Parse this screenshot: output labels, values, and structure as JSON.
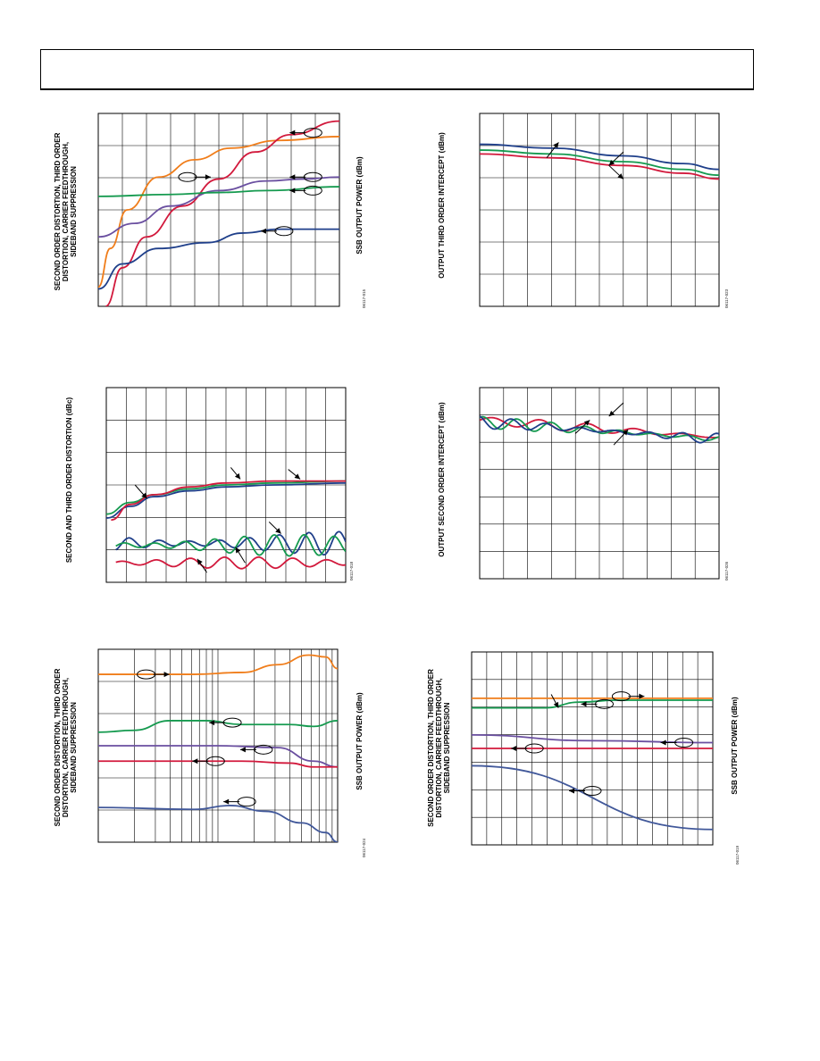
{
  "page": {
    "header": ""
  },
  "chart_data": [
    {
      "id": "c1",
      "type": "line",
      "ylabel": "SECOND ORDER DISTORTION, THIRD ORDER\nDISTORTION, CARRIER FEEDTHROUGH,\nSIDEBAND SUPPRESSION",
      "xlabel": "SSB OUTPUT POWER (dBm)",
      "code": "06117-015",
      "grid": {
        "vlines": 10,
        "hlines": 6
      },
      "xlim": [
        0,
        1
      ],
      "ylim": [
        0,
        1
      ],
      "colors": {
        "orange": "#f07d1a",
        "red": "#d2193c",
        "purple": "#6a4fa0",
        "green": "#159a4f",
        "blue": "#1f3f8a"
      },
      "series": [
        {
          "color": "orange",
          "points": [
            [
              0,
              0.1
            ],
            [
              0.05,
              0.3
            ],
            [
              0.12,
              0.5
            ],
            [
              0.25,
              0.67
            ],
            [
              0.4,
              0.76
            ],
            [
              0.55,
              0.82
            ],
            [
              0.75,
              0.86
            ],
            [
              1,
              0.88
            ]
          ]
        },
        {
          "color": "red",
          "points": [
            [
              0.03,
              0
            ],
            [
              0.1,
              0.2
            ],
            [
              0.2,
              0.36
            ],
            [
              0.35,
              0.52
            ],
            [
              0.5,
              0.66
            ],
            [
              0.65,
              0.8
            ],
            [
              0.8,
              0.89
            ],
            [
              1,
              0.96
            ]
          ]
        },
        {
          "color": "purple",
          "points": [
            [
              0,
              0.36
            ],
            [
              0.15,
              0.43
            ],
            [
              0.3,
              0.52
            ],
            [
              0.5,
              0.6
            ],
            [
              0.7,
              0.65
            ],
            [
              0.85,
              0.66
            ],
            [
              1,
              0.67
            ]
          ]
        },
        {
          "color": "green",
          "points": [
            [
              0,
              0.57
            ],
            [
              0.3,
              0.58
            ],
            [
              0.5,
              0.59
            ],
            [
              0.7,
              0.6
            ],
            [
              1,
              0.62
            ]
          ]
        },
        {
          "color": "blue",
          "points": [
            [
              0,
              0.09
            ],
            [
              0.1,
              0.22
            ],
            [
              0.25,
              0.3
            ],
            [
              0.45,
              0.33
            ],
            [
              0.6,
              0.38
            ],
            [
              0.75,
              0.4
            ],
            [
              1,
              0.4
            ]
          ]
        }
      ],
      "markers": [
        {
          "x": 0.89,
          "y": 0.9,
          "dir": "left",
          "color": "red"
        },
        {
          "x": 0.37,
          "y": 0.67,
          "dir": "right",
          "color": "orange"
        },
        {
          "x": 0.89,
          "y": 0.67,
          "dir": "left",
          "color": "purple"
        },
        {
          "x": 0.89,
          "y": 0.6,
          "dir": "left",
          "color": "green"
        },
        {
          "x": 0.77,
          "y": 0.39,
          "dir": "left",
          "color": "blue"
        }
      ]
    },
    {
      "id": "c2",
      "type": "line",
      "ylabel": "OUTPUT THIRD ORDER INTERCEPT (dBm)",
      "xlabel": "",
      "code": "06117-023",
      "grid": {
        "vlines": 10,
        "hlines": 6
      },
      "xlim": [
        0,
        1
      ],
      "ylim": [
        0,
        1
      ],
      "colors": {
        "red": "#d2193c",
        "green": "#159a4f",
        "blue": "#1f3f8a"
      },
      "series": [
        {
          "color": "blue",
          "points": [
            [
              0,
              0.84
            ],
            [
              0.3,
              0.82
            ],
            [
              0.6,
              0.78
            ],
            [
              0.85,
              0.74
            ],
            [
              1,
              0.71
            ]
          ]
        },
        {
          "color": "green",
          "points": [
            [
              0,
              0.81
            ],
            [
              0.3,
              0.79
            ],
            [
              0.6,
              0.75
            ],
            [
              0.85,
              0.71
            ],
            [
              1,
              0.68
            ]
          ]
        },
        {
          "color": "red",
          "points": [
            [
              0,
              0.79
            ],
            [
              0.3,
              0.77
            ],
            [
              0.6,
              0.73
            ],
            [
              0.85,
              0.69
            ],
            [
              1,
              0.66
            ]
          ]
        }
      ],
      "arrows": [
        {
          "x1": 0.6,
          "y1": 0.8,
          "x2": 0.54,
          "y2": 0.73
        },
        {
          "x1": 0.28,
          "y1": 0.77,
          "x2": 0.33,
          "y2": 0.85
        },
        {
          "x1": 0.54,
          "y1": 0.73,
          "x2": 0.6,
          "y2": 0.66
        }
      ]
    },
    {
      "id": "c3",
      "type": "line",
      "ylabel": "SECOND AND THIRD ORDER DISTORTION (dBc)",
      "xlabel": "",
      "code": "06117-018",
      "grid": {
        "vlines": 12,
        "hlines": 6
      },
      "xlim": [
        0,
        1
      ],
      "ylim": [
        0,
        1
      ],
      "colors": {
        "red": "#d2193c",
        "green": "#159a4f",
        "blue": "#1f3f8a"
      },
      "series": [
        {
          "color": "green",
          "points": [
            [
              0,
              0.35
            ],
            [
              0.1,
              0.41
            ],
            [
              0.2,
              0.45
            ],
            [
              0.35,
              0.48
            ],
            [
              0.5,
              0.5
            ],
            [
              0.7,
              0.51
            ],
            [
              1,
              0.52
            ]
          ]
        },
        {
          "color": "blue",
          "points": [
            [
              0,
              0.33
            ],
            [
              0.1,
              0.39
            ],
            [
              0.2,
              0.44
            ],
            [
              0.35,
              0.47
            ],
            [
              0.5,
              0.49
            ],
            [
              0.7,
              0.5
            ],
            [
              1,
              0.51
            ]
          ]
        },
        {
          "color": "red",
          "points": [
            [
              0.02,
              0.32
            ],
            [
              0.1,
              0.4
            ],
            [
              0.2,
              0.45
            ],
            [
              0.35,
              0.49
            ],
            [
              0.5,
              0.51
            ],
            [
              0.7,
              0.52
            ],
            [
              1,
              0.52
            ]
          ]
        },
        {
          "color": "blue",
          "wavy": true,
          "base": 0.2,
          "amp": 0.06,
          "freq": 16,
          "start": 0.04
        },
        {
          "color": "green",
          "wavy": true,
          "base": 0.19,
          "amp": 0.055,
          "freq": 16,
          "start": 0.04
        },
        {
          "color": "red",
          "wavy": true,
          "base": 0.1,
          "amp": 0.03,
          "freq": 14,
          "start": 0.04
        }
      ],
      "arrows": [
        {
          "x1": 0.12,
          "y1": 0.5,
          "x2": 0.17,
          "y2": 0.43
        },
        {
          "x1": 0.52,
          "y1": 0.59,
          "x2": 0.56,
          "y2": 0.53
        },
        {
          "x1": 0.76,
          "y1": 0.58,
          "x2": 0.81,
          "y2": 0.53
        },
        {
          "x1": 0.68,
          "y1": 0.31,
          "x2": 0.73,
          "y2": 0.25
        },
        {
          "x1": 0.58,
          "y1": 0.1,
          "x2": 0.54,
          "y2": 0.18
        },
        {
          "x1": 0.42,
          "y1": 0.05,
          "x2": 0.38,
          "y2": 0.12
        }
      ]
    },
    {
      "id": "c4",
      "type": "line",
      "ylabel": "OUTPUT SECOND ORDER INTERCEPT (dBm)",
      "xlabel": "",
      "code": "06117-026",
      "grid": {
        "vlines": 10,
        "hlines": 7
      },
      "xlim": [
        0,
        1
      ],
      "ylim": [
        0,
        1
      ],
      "colors": {
        "red": "#d2193c",
        "green": "#159a4f",
        "blue": "#1f3f8a"
      },
      "series": [
        {
          "color": "red",
          "wavy": true,
          "base": 0.83,
          "amp": 0.025,
          "freq": 10,
          "start": 0,
          "slope": -0.09
        },
        {
          "color": "green",
          "wavy": true,
          "base": 0.82,
          "amp": 0.03,
          "freq": 14,
          "start": 0,
          "slope": -0.09
        },
        {
          "color": "blue",
          "wavy": true,
          "base": 0.82,
          "amp": 0.035,
          "freq": 14,
          "start": 0,
          "slope": -0.09
        }
      ],
      "arrows": [
        {
          "x1": 0.6,
          "y1": 0.92,
          "x2": 0.54,
          "y2": 0.85
        },
        {
          "x1": 0.4,
          "y1": 0.76,
          "x2": 0.46,
          "y2": 0.83
        },
        {
          "x1": 0.56,
          "y1": 0.7,
          "x2": 0.62,
          "y2": 0.78
        }
      ]
    },
    {
      "id": "c5",
      "type": "line",
      "ylabel": "SECOND ORDER DISTORTION, THIRD ORDER\nDISTORTION, CARRIER FEEDTHROUGH,\nSIDEBAND SUPPRESSION",
      "xlabel": "SSB OUTPUT POWER (dBm)",
      "code": "06117-024",
      "grid": {
        "vlines": 28,
        "hlines": 6,
        "log": true
      },
      "xlim": [
        0,
        1
      ],
      "ylim": [
        0,
        1
      ],
      "colors": {
        "orange": "#f07d1a",
        "red": "#d2193c",
        "purple": "#6a4fa0",
        "green": "#159a4f",
        "blue": "#41589a"
      },
      "series": [
        {
          "color": "orange",
          "points": [
            [
              0,
              0.87
            ],
            [
              0.4,
              0.87
            ],
            [
              0.6,
              0.88
            ],
            [
              0.75,
              0.92
            ],
            [
              0.88,
              0.97
            ],
            [
              0.95,
              0.96
            ],
            [
              1,
              0.9
            ]
          ]
        },
        {
          "color": "green",
          "points": [
            [
              0,
              0.57
            ],
            [
              0.15,
              0.58
            ],
            [
              0.3,
              0.63
            ],
            [
              0.45,
              0.63
            ],
            [
              0.6,
              0.61
            ],
            [
              0.8,
              0.61
            ],
            [
              0.9,
              0.6
            ],
            [
              1,
              0.63
            ]
          ]
        },
        {
          "color": "purple",
          "points": [
            [
              0,
              0.5
            ],
            [
              0.5,
              0.5
            ],
            [
              0.75,
              0.49
            ],
            [
              0.9,
              0.42
            ],
            [
              1,
              0.39
            ]
          ]
        },
        {
          "color": "red",
          "points": [
            [
              0,
              0.42
            ],
            [
              0.6,
              0.42
            ],
            [
              0.8,
              0.41
            ],
            [
              0.9,
              0.39
            ],
            [
              1,
              0.39
            ]
          ]
        },
        {
          "color": "blue",
          "points": [
            [
              0,
              0.18
            ],
            [
              0.4,
              0.17
            ],
            [
              0.55,
              0.19
            ],
            [
              0.7,
              0.16
            ],
            [
              0.85,
              0.1
            ],
            [
              0.95,
              0.05
            ],
            [
              1,
              0.0
            ]
          ]
        }
      ],
      "markers": [
        {
          "x": 0.2,
          "y": 0.87,
          "dir": "right",
          "color": "orange"
        },
        {
          "x": 0.56,
          "y": 0.62,
          "dir": "left",
          "color": "green"
        },
        {
          "x": 0.69,
          "y": 0.48,
          "dir": "left",
          "color": "purple"
        },
        {
          "x": 0.49,
          "y": 0.42,
          "dir": "left",
          "color": "red"
        },
        {
          "x": 0.62,
          "y": 0.21,
          "dir": "left",
          "color": "blue"
        }
      ]
    },
    {
      "id": "c6",
      "type": "line",
      "ylabel": "SECOND ORDER DISTORTION, THIRD ORDER\nDISTORTION, CARRIER FEEDTHROUGH,\nSIDEBAND SUPPRESSION",
      "xlabel": "SSB OUTPUT POWER (dBm)",
      "code": "06117-019",
      "grid": {
        "vlines": 16,
        "hlines": 7
      },
      "xlim": [
        0,
        1
      ],
      "ylim": [
        0,
        1
      ],
      "colors": {
        "orange": "#f07d1a",
        "red": "#d2193c",
        "purple": "#6a4fa0",
        "green": "#159a4f",
        "blue": "#41589a"
      },
      "series": [
        {
          "color": "orange",
          "points": [
            [
              0,
              0.76
            ],
            [
              1,
              0.76
            ]
          ]
        },
        {
          "color": "green",
          "points": [
            [
              0,
              0.71
            ],
            [
              0.3,
              0.71
            ],
            [
              0.45,
              0.74
            ],
            [
              0.6,
              0.75
            ],
            [
              1,
              0.75
            ]
          ]
        },
        {
          "color": "purple",
          "points": [
            [
              0,
              0.57
            ],
            [
              0.5,
              0.54
            ],
            [
              1,
              0.53
            ]
          ]
        },
        {
          "color": "red",
          "points": [
            [
              0,
              0.5
            ],
            [
              1,
              0.5
            ]
          ]
        },
        {
          "color": "blue",
          "points": [
            [
              0,
              0.41
            ],
            [
              1,
              0.08
            ]
          ]
        }
      ],
      "markers": [
        {
          "x": 0.62,
          "y": 0.77,
          "dir": "right",
          "color": "orange"
        },
        {
          "x": 0.55,
          "y": 0.73,
          "dir": "left",
          "color": "green"
        },
        {
          "x": 0.88,
          "y": 0.53,
          "dir": "left",
          "color": "purple"
        },
        {
          "x": 0.26,
          "y": 0.5,
          "dir": "left",
          "color": "red"
        },
        {
          "x": 0.5,
          "y": 0.28,
          "dir": "left",
          "color": "blue"
        }
      ],
      "arrows": [
        {
          "x1": 0.33,
          "y1": 0.78,
          "x2": 0.36,
          "y2": 0.71
        }
      ]
    }
  ]
}
